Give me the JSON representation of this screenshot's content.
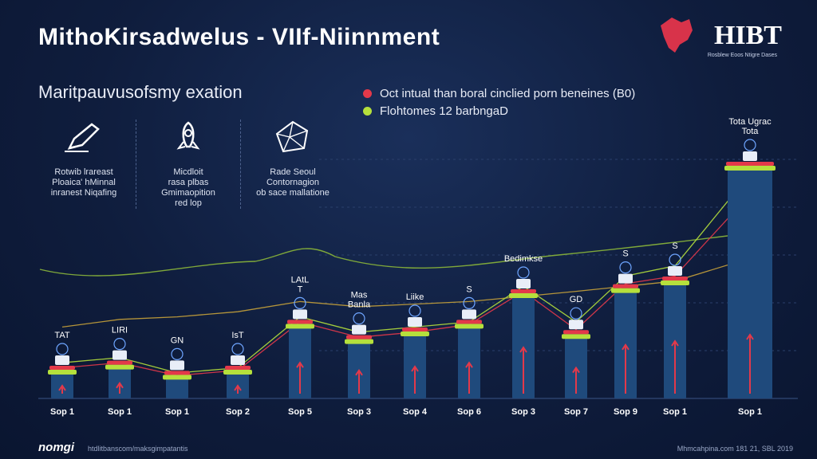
{
  "header": {
    "title": "MithoKirsadwelus - VIIf-Niinnment",
    "logo_text": "HIBT",
    "logo_sub": "Rosblew Eoos Ntigre Dases"
  },
  "subtitle": "Maritpauvusofsmy exation",
  "legend": [
    {
      "label": "Oct intual than boral cinclied porn beneines (B0)",
      "color": "#e3394a"
    },
    {
      "label": "Flohtomes 12 barbngaD",
      "color": "#b5e03c"
    }
  ],
  "features": [
    {
      "icon": "pen-icon",
      "text": "Rotwib lrareast\nPloaica' hMinnal\ninranest Niqafing"
    },
    {
      "icon": "rocket-icon",
      "text": "Micdloit\nrasa plbas\nGmimaopition\nred lop"
    },
    {
      "icon": "polyhedron-icon",
      "text": "Rade Seoul\nContornagion\nob sace mallatione"
    }
  ],
  "colors": {
    "bar": "#1f4a7c",
    "bar_top": "#2b5f99",
    "red_accent": "#e3394a",
    "green_accent": "#b5e03c",
    "line_gold": "#c8a23a"
  },
  "chart_data": {
    "type": "bar",
    "categories": [
      "Sop 1",
      "Sop 1",
      "Sop 1",
      "Sop 2",
      "Sop 5",
      "Sop 3",
      "Sop 4",
      "Sop 6",
      "Sop 3",
      "Sop 7",
      "Sop 9",
      "Sop 1",
      "Sop 1"
    ],
    "values": [
      10,
      12,
      8,
      10,
      28,
      22,
      25,
      28,
      40,
      24,
      42,
      45,
      90
    ],
    "bar_labels": [
      "TAT",
      "LIRI",
      "GN",
      "IsT",
      "LAtL\nT",
      "Mas\nBanla",
      "Liike",
      "S",
      "Bedimkse",
      "GD",
      "S",
      "S",
      "Tota Ugrac\nTota"
    ],
    "series": [
      {
        "values": [
          10,
          12,
          8,
          10,
          28,
          22,
          25,
          28,
          40,
          24,
          42,
          45,
          90
        ]
      },
      {
        "values": [
          28,
          31,
          32,
          34,
          38,
          36,
          37,
          38,
          40,
          42,
          44,
          46,
          55
        ]
      },
      {
        "values": [
          14,
          16,
          10,
          12,
          32,
          26,
          28,
          30,
          44,
          30,
          48,
          52,
          88
        ]
      },
      {
        "values": [
          12,
          14,
          9,
          11,
          30,
          24,
          26,
          29,
          42,
          27,
          45,
          48,
          80
        ]
      }
    ],
    "ylim": [
      0,
      100
    ],
    "grid": true,
    "legend_position": "top"
  },
  "footer": {
    "brand": "nomgi",
    "url": "htdlitbanscom/maksgimpatantis",
    "right": "Mhmcahpina.com 181 21, SBL 2019"
  }
}
